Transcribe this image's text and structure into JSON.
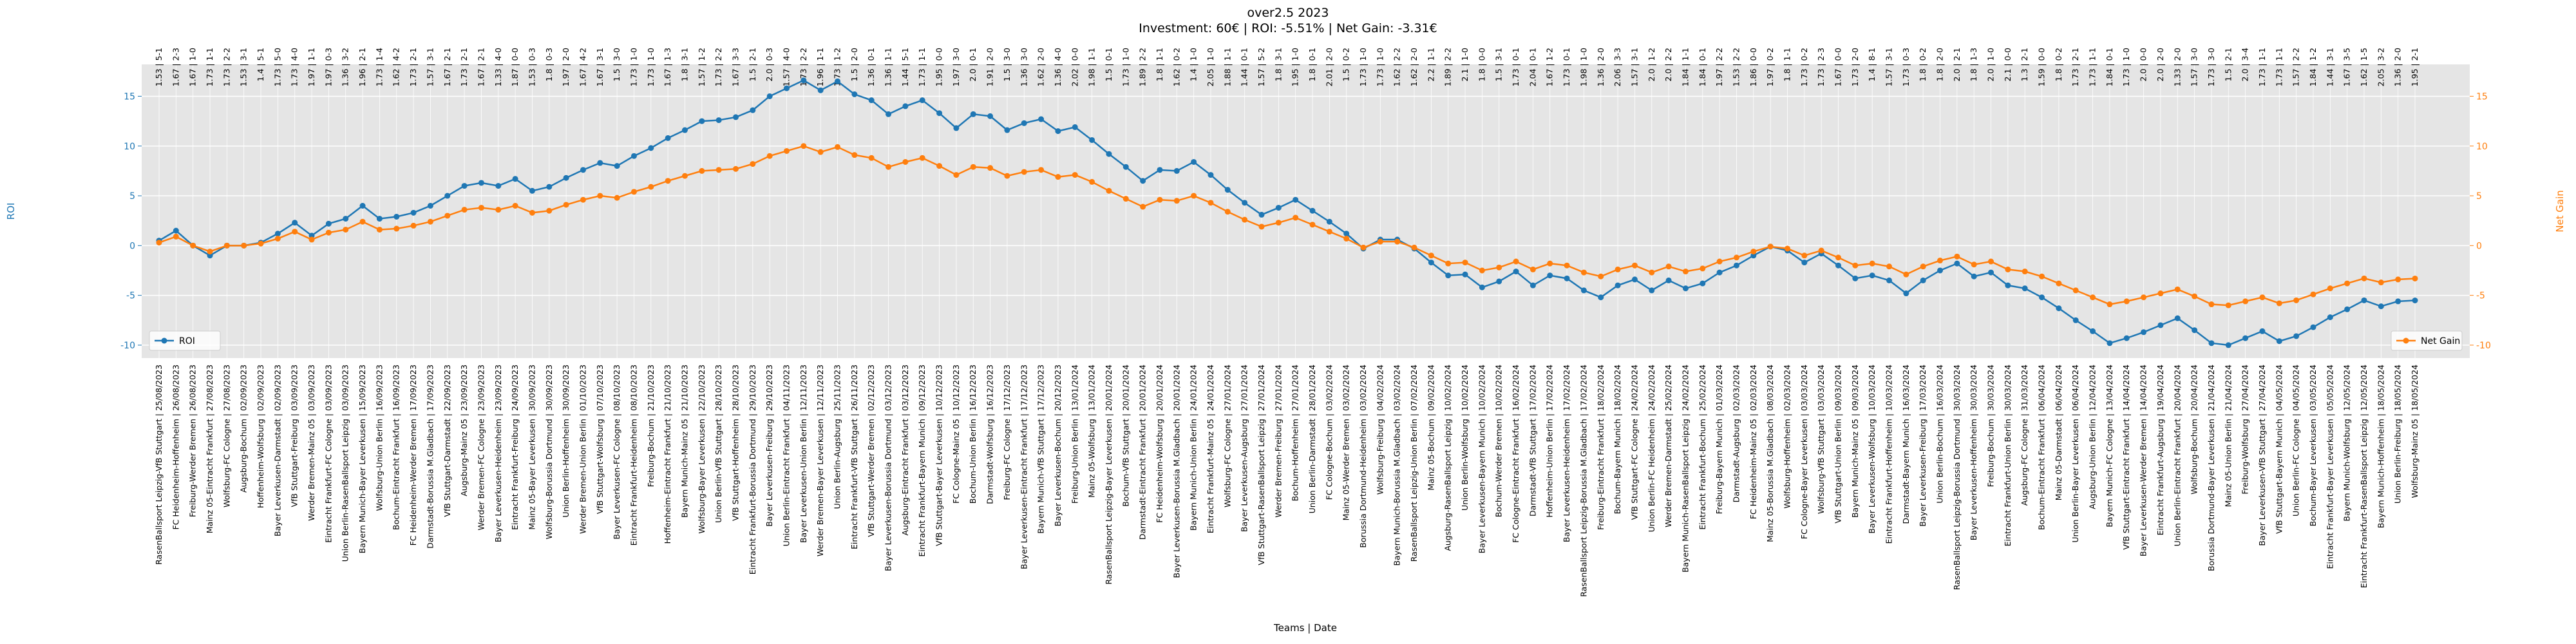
{
  "chart_data": {
    "type": "line",
    "title": "over2.5 2023",
    "subtitle": "Investment: 60€ | ROI: -5.51% | Net Gain: -3.31€",
    "x_label": "Teams | Date",
    "y_label": "ROI",
    "y2_label": "Net Gain",
    "ylim": [
      -11.3,
      18.2
    ],
    "yticks": [
      -10,
      -5,
      0,
      5,
      10,
      15
    ],
    "y2lim": [
      -11.3,
      18.2
    ],
    "y2ticks": [
      -10,
      -5,
      0,
      5,
      10,
      15
    ],
    "grid": true,
    "legend": "lower left",
    "legend2": "lower right",
    "categories": [
      "RasenBallsport Leipzig-VfB Stuttgart | 25/08/2023",
      "FC Heidenheim-Hoffenheim | 26/08/2023",
      "Freiburg-Werder Bremen | 26/08/2023",
      "Mainz 05-Eintracht Frankfurt | 27/08/2023",
      "Wolfsburg-FC Cologne | 27/08/2023",
      "Augsburg-Bochum | 02/09/2023",
      "Hoffenheim-Wolfsburg | 02/09/2023",
      "Bayer Leverkusen-Darmstadt | 02/09/2023",
      "VfB Stuttgart-Freiburg | 03/09/2023",
      "Werder Bremen-Mainz 05 | 03/09/2023",
      "Eintracht Frankfurt-FC Cologne | 03/09/2023",
      "Union Berlin-RasenBallsport Leipzig | 03/09/2023",
      "Bayern Munich-Bayer Leverkusen | 15/09/2023",
      "Wolfsburg-Union Berlin | 16/09/2023",
      "Bochum-Eintracht Frankfurt | 16/09/2023",
      "FC Heidenheim-Werder Bremen | 17/09/2023",
      "Darmstadt-Borussia M.Gladbach | 17/09/2023",
      "VfB Stuttgart-Darmstadt | 22/09/2023",
      "Augsburg-Mainz 05 | 23/09/2023",
      "Werder Bremen-FC Cologne | 23/09/2023",
      "Bayer Leverkusen-Heidenheim | 23/09/2023",
      "Eintracht Frankfurt-Freiburg | 24/09/2023",
      "Mainz 05-Bayer Leverkusen | 30/09/2023",
      "Wolfsburg-Borussia Dortmund | 30/09/2023",
      "Union Berlin-Hoffenheim | 30/09/2023",
      "Werder Bremen-Union Berlin | 01/10/2023",
      "VfB Stuttgart-Wolfsburg | 07/10/2023",
      "Bayer Leverkusen-FC Cologne | 08/10/2023",
      "Eintracht Frankfurt-Heidenheim | 08/10/2023",
      "Freiburg-Bochum | 21/10/2023",
      "Hoffenheim-Eintracht Frankfurt | 21/10/2023",
      "Bayern Munich-Mainz 05 | 21/10/2023",
      "Wolfsburg-Bayer Leverkusen | 22/10/2023",
      "Union Berlin-VfB Stuttgart | 28/10/2023",
      "VfB Stuttgart-Hoffenheim | 28/10/2023",
      "Eintracht Frankfurt-Borussia Dortmund | 29/10/2023",
      "Bayer Leverkusen-Freiburg | 29/10/2023",
      "Union Berlin-Eintracht Frankfurt | 04/11/2023",
      "Bayer Leverkusen-Union Berlin | 12/11/2023",
      "Werder Bremen-Bayer Leverkusen | 12/11/2023",
      "Union Berlin-Augsburg | 25/11/2023",
      "Eintracht Frankfurt-VfB Stuttgart | 26/11/2023",
      "VfB Stuttgart-Werder Bremen | 02/12/2023",
      "Bayer Leverkusen-Borussia Dortmund | 03/12/2023",
      "Augsburg-Eintracht Frankfurt | 03/12/2023",
      "Eintracht Frankfurt-Bayern Munich | 09/12/2023",
      "VfB Stuttgart-Bayer Leverkusen | 10/12/2023",
      "FC Cologne-Mainz 05 | 10/12/2023",
      "Bochum-Union Berlin | 16/12/2023",
      "Darmstadt-Wolfsburg | 16/12/2023",
      "Freiburg-FC Cologne | 17/12/2023",
      "Bayer Leverkusen-Eintracht Frankfurt | 17/12/2023",
      "Bayern Munich-VfB Stuttgart | 17/12/2023",
      "Bayer Leverkusen-Bochum | 20/12/2023",
      "Freiburg-Union Berlin | 13/01/2024",
      "Mainz 05-Wolfsburg | 13/01/2024",
      "RasenBallsport Leipzig-Bayer Leverkusen | 20/01/2024",
      "Bochum-VfB Stuttgart | 20/01/2024",
      "Darmstadt-Eintracht Frankfurt | 20/01/2024",
      "FC Heidenheim-Wolfsburg | 20/01/2024",
      "Bayer Leverkusen-Borussia M.Gladbach | 20/01/2024",
      "Bayern Munich-Union Berlin | 24/01/2024",
      "Eintracht Frankfurt-Mainz 05 | 24/01/2024",
      "Wolfsburg-FC Cologne | 27/01/2024",
      "Bayer Leverkusen-Augsburg | 27/01/2024",
      "VfB Stuttgart-RasenBallsport Leipzig | 27/01/2024",
      "Werder Bremen-Freiburg | 27/01/2024",
      "Bochum-Hoffenheim | 27/01/2024",
      "Union Berlin-Darmstadt | 28/01/2024",
      "FC Cologne-Bochum | 03/02/2024",
      "Mainz 05-Werder Bremen | 03/02/2024",
      "Borussia Dortmund-Heidenheim | 03/02/2024",
      "Wolfsburg-Freiburg | 04/02/2024",
      "Bayern Munich-Borussia M.Gladbach | 03/02/2024",
      "RasenBallsport Leipzig-Union Berlin | 07/02/2024",
      "Mainz 05-Bochum | 09/02/2024",
      "Augsburg-RasenBallsport Leipzig | 10/02/2024",
      "Union Berlin-Wolfsburg | 10/02/2024",
      "Bayer Leverkusen-Bayern Munich | 10/02/2024",
      "Bochum-Werder Bremen | 10/02/2024",
      "FC Cologne-Eintracht Frankfurt | 16/02/2024",
      "Darmstadt-VfB Stuttgart | 17/02/2024",
      "Hoffenheim-Union Berlin | 17/02/2024",
      "Bayer Leverkusen-Heidenheim | 17/02/2024",
      "RasenBallsport Leipzig-Borussia M.Gladbach | 17/02/2024",
      "Freiburg-Eintracht Frankfurt | 18/02/2024",
      "Bochum-Bayern Munich | 18/02/2024",
      "VfB Stuttgart-FC Cologne | 24/02/2024",
      "Union Berlin-FC Heidenheim | 24/02/2024",
      "Werder Bremen-Darmstadt | 25/02/2024",
      "Bayern Munich-RasenBallsport Leipzig | 24/02/2024",
      "Eintracht Frankfurt-Bochum | 25/02/2024",
      "Freiburg-Bayern Munich | 01/03/2024",
      "Darmstadt-Augsburg | 02/03/2024",
      "FC Heidenheim-Mainz 05 | 02/03/2024",
      "Mainz 05-Borussia M.Gladbach | 08/03/2024",
      "Wolfsburg-Hoffenheim | 02/03/2024",
      "FC Cologne-Bayer Leverkusen | 03/03/2024",
      "Wolfsburg-VfB Stuttgart | 03/03/2024",
      "VfB Stuttgart-Union Berlin | 09/03/2024",
      "Bayern Munich-Mainz 05 | 09/03/2024",
      "Bayer Leverkusen-Wolfsburg | 10/03/2024",
      "Eintracht Frankfurt-Hoffenheim | 10/03/2024",
      "Darmstadt-Bayern Munich | 16/03/2024",
      "Bayer Leverkusen-Freiburg | 17/03/2024",
      "Union Berlin-Bochum | 16/03/2024",
      "RasenBallsport Leipzig-Borussia Dortmund | 30/03/2024",
      "Bayer Leverkusen-Hoffenheim | 30/03/2024",
      "Freiburg-Bochum | 30/03/2024",
      "Eintracht Frankfurt-Union Berlin | 30/03/2024",
      "Augsburg-FC Cologne | 31/03/2024",
      "Bochum-Eintracht Frankfurt | 06/04/2024",
      "Mainz 05-Darmstadt | 06/04/2024",
      "Union Berlin-Bayer Leverkusen | 06/04/2024",
      "Augsburg-Union Berlin | 12/04/2024",
      "Bayern Munich-FC Cologne | 13/04/2024",
      "VfB Stuttgart-Eintracht Frankfurt | 14/04/2024",
      "Bayer Leverkusen-Werder Bremen | 14/04/2024",
      "Eintracht Frankfurt-Augsburg | 19/04/2024",
      "Union Berlin-Eintracht Frankfurt | 20/04/2024",
      "Wolfsburg-Bochum | 20/04/2024",
      "Borussia Dortmund-Bayer Leverkusen | 21/04/2024",
      "Mainz 05-Union Berlin | 21/04/2024",
      "Freiburg-Wolfsburg | 27/04/2024",
      "Bayer Leverkusen-VfB Stuttgart | 27/04/2024",
      "VfB Stuttgart-Bayern Munich | 04/05/2024",
      "Union Berlin-FC Cologne | 04/05/2024",
      "Bochum-Bayer Leverkusen | 03/05/2024",
      "Eintracht Frankfurt-Bayer Leverkusen | 05/05/2024",
      "Bayern Munich-Wolfsburg | 12/05/2024",
      "Eintracht Frankfurt-RasenBallsport Leipzig | 12/05/2024",
      "Bayern Munich-Hoffenheim | 18/05/2024",
      "Union Berlin-Freiburg | 18/05/2024",
      "Wolfsburg-Mainz 05 | 18/05/2024"
    ],
    "top_labels": [
      "1.53 | 5-1",
      "1.67 | 2-3",
      "1.67 | 1-0",
      "1.73 | 1-1",
      "1.73 | 2-2",
      "1.53 | 3-1",
      "1.4 | 5-1",
      "1.73 | 5-0",
      "1.73 | 4-0",
      "1.97 | 1-1",
      "1.97 | 0-3",
      "1.36 | 3-2",
      "1.96 | 2-1",
      "1.73 | 1-4",
      "1.62 | 4-2",
      "1.73 | 2-1",
      "1.57 | 3-1",
      "1.67 | 2-1",
      "1.73 | 2-1",
      "1.67 | 2-1",
      "1.33 | 4-0",
      "1.87 | 0-0",
      "1.53 | 0-3",
      "1.8 | 0-3",
      "1.97 | 2-0",
      "1.67 | 4-2",
      "1.67 | 3-1",
      "1.5 | 3-0",
      "1.73 | 1-0",
      "1.73 | 1-0",
      "1.67 | 1-3",
      "1.8 | 3-1",
      "1.57 | 1-2",
      "1.73 | 2-2",
      "1.67 | 3-3",
      "1.5 | 2-1",
      "2.0 | 0-3",
      "1.57 | 4-0",
      "1.73 | 2-2",
      "1.96 | 1-1",
      "1.73 | 1-2",
      "1.5 | 2-0",
      "1.36 | 0-1",
      "1.36 | 1-1",
      "1.44 | 5-1",
      "1.73 | 1-1",
      "1.95 | 0-0",
      "1.97 | 3-0",
      "2.0 | 0-1",
      "1.91 | 2-0",
      "1.5 | 3-0",
      "1.36 | 3-0",
      "1.62 | 2-0",
      "1.36 | 4-0",
      "2.02 | 0-0",
      "1.98 | 1-1",
      "1.5 | 0-1",
      "1.73 | 1-0",
      "1.89 | 2-2",
      "1.8 | 1-1",
      "1.62 | 0-2",
      "1.4 | 1-0",
      "2.05 | 1-0",
      "1.88 | 1-1",
      "1.44 | 0-1",
      "1.57 | 5-2",
      "1.8 | 3-1",
      "1.95 | 1-0",
      "1.8 | 0-1",
      "2.01 | 2-0",
      "1.5 | 0-2",
      "1.73 | 1-0",
      "1.73 | 1-0",
      "1.62 | 2-2",
      "1.62 | 2-0",
      "2.2 | 1-1",
      "1.89 | 2-2",
      "2.1 | 1-0",
      "1.8 | 0-0",
      "1.5 | 3-1",
      "1.73 | 0-1",
      "2.04 | 0-1",
      "1.67 | 1-2",
      "1.73 | 0-1",
      "1.98 | 1-0",
      "1.36 | 2-0",
      "2.06 | 3-3",
      "1.57 | 3-1",
      "2.0 | 1-2",
      "2.0 | 2-2",
      "1.84 | 1-1",
      "1.84 | 0-1",
      "1.97 | 2-2",
      "1.53 | 2-2",
      "1.86 | 0-0",
      "1.97 | 0-2",
      "1.8 | 1-1",
      "1.73 | 0-2",
      "1.73 | 2-3",
      "1.67 | 0-0",
      "1.73 | 2-0",
      "1.4 | 8-1",
      "1.57 | 3-1",
      "1.73 | 0-3",
      "1.8 | 0-2",
      "1.8 | 2-0",
      "2.0 | 2-1",
      "1.8 | 1-3",
      "2.0 | 1-0",
      "2.1 | 0-0",
      "1.3 | 2-1",
      "1.59 | 0-0",
      "1.8 | 0-2",
      "1.73 | 2-1",
      "1.73 | 1-1",
      "1.84 | 0-1",
      "1.73 | 1-0",
      "2.0 | 0-0",
      "2.0 | 2-0",
      "1.33 | 2-0",
      "1.57 | 3-0",
      "1.73 | 3-0",
      "1.5 | 2-1",
      "2.0 | 3-4",
      "1.73 | 1-1",
      "1.73 | 1-1",
      "1.57 | 2-2",
      "1.84 | 1-2",
      "1.44 | 3-1",
      "1.67 | 3-5",
      "1.62 | 1-5",
      "2.05 | 3-2",
      "1.36 | 2-0",
      "1.95 | 2-1"
    ],
    "series": [
      {
        "name": "ROI",
        "color": "#1f77b4",
        "axis": "y",
        "values": [
          0.5,
          1.5,
          0,
          -1,
          0,
          0,
          0.3,
          1.2,
          2.3,
          1,
          2.2,
          2.7,
          4,
          2.7,
          2.9,
          3.3,
          4,
          5,
          6,
          6.3,
          6,
          6.7,
          5.5,
          5.9,
          6.8,
          7.6,
          8.3,
          8,
          9,
          9.8,
          10.8,
          11.6,
          12.5,
          12.6,
          12.9,
          13.6,
          15,
          15.8,
          16.6,
          15.6,
          16.5,
          15.2,
          14.6,
          13.2,
          14,
          14.6,
          13.3,
          11.8,
          13.2,
          13,
          11.6,
          12.3,
          12.7,
          11.5,
          11.9,
          10.6,
          9.2,
          7.9,
          6.5,
          7.6,
          7.5,
          8.4,
          7.1,
          5.6,
          4.3,
          3.1,
          3.8,
          4.6,
          3.5,
          2.4,
          1.2,
          -0.3,
          0.6,
          0.6,
          -0.3,
          -1.7,
          -3,
          -2.9,
          -4.2,
          -3.6,
          -2.6,
          -4,
          -3,
          -3.3,
          -4.5,
          -5.2,
          -4,
          -3.4,
          -4.5,
          -3.5,
          -4.3,
          -3.8,
          -2.7,
          -2,
          -1,
          -0.1,
          -0.5,
          -1.7,
          -0.8,
          -2,
          -3.3,
          -3,
          -3.5,
          -4.8,
          -3.5,
          -2.5,
          -1.8,
          -3.1,
          -2.7,
          -4,
          -4.3,
          -5.2,
          -6.3,
          -7.5,
          -8.6,
          -9.8,
          -9.3,
          -8.7,
          -8,
          -7.3,
          -8.5,
          -9.8,
          -10,
          -9.3,
          -8.6,
          -9.6,
          -9.1,
          -8.2,
          -7.2,
          -6.4,
          -5.5,
          -6.1,
          -5.6,
          -5.51
        ]
      },
      {
        "name": "Net Gain",
        "color": "#ff7f0e",
        "axis": "y2",
        "values": [
          0.3,
          0.9,
          0,
          -0.6,
          0,
          0,
          0.2,
          0.7,
          1.4,
          0.6,
          1.3,
          1.6,
          2.4,
          1.6,
          1.7,
          2,
          2.4,
          3,
          3.6,
          3.8,
          3.6,
          4,
          3.3,
          3.5,
          4.1,
          4.6,
          5,
          4.8,
          5.4,
          5.9,
          6.5,
          7,
          7.5,
          7.6,
          7.7,
          8.2,
          9,
          9.5,
          10,
          9.4,
          9.9,
          9.1,
          8.8,
          7.9,
          8.4,
          8.8,
          8,
          7.1,
          7.9,
          7.8,
          7,
          7.4,
          7.6,
          6.9,
          7.1,
          6.4,
          5.5,
          4.7,
          3.9,
          4.6,
          4.5,
          5,
          4.3,
          3.4,
          2.6,
          1.9,
          2.3,
          2.8,
          2.1,
          1.4,
          0.7,
          -0.2,
          0.4,
          0.4,
          -0.2,
          -1,
          -1.8,
          -1.7,
          -2.5,
          -2.2,
          -1.6,
          -2.4,
          -1.8,
          -2,
          -2.7,
          -3.1,
          -2.4,
          -2,
          -2.7,
          -2.1,
          -2.6,
          -2.3,
          -1.6,
          -1.2,
          -0.6,
          -0.1,
          -0.3,
          -1,
          -0.5,
          -1.2,
          -2,
          -1.8,
          -2.1,
          -2.9,
          -2.1,
          -1.5,
          -1.1,
          -1.9,
          -1.6,
          -2.4,
          -2.6,
          -3.1,
          -3.8,
          -4.5,
          -5.2,
          -5.9,
          -5.6,
          -5.2,
          -4.8,
          -4.4,
          -5.1,
          -5.9,
          -6,
          -5.6,
          -5.2,
          -5.8,
          -5.5,
          -4.9,
          -4.3,
          -3.8,
          -3.3,
          -3.7,
          -3.4,
          -3.31
        ]
      }
    ]
  }
}
